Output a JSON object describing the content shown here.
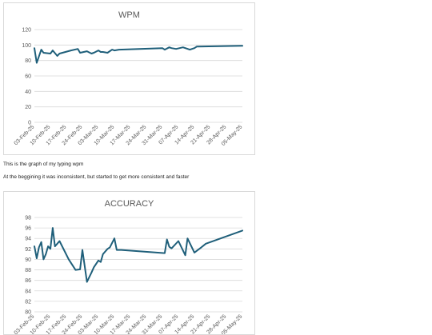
{
  "notes": {
    "line1": "This is the graph of my typing wpm",
    "line2": "At the beggining it was inconsistent, but started to get more consistent and faster"
  },
  "colors": {
    "series": "#1f5f7a",
    "grid": "#d9d9d9",
    "text": "#595959"
  },
  "chart_data": [
    {
      "type": "line",
      "title": "WPM",
      "xlabel": "",
      "ylabel": "",
      "ylim": [
        0,
        120
      ],
      "yticks": [
        0,
        20,
        40,
        60,
        80,
        100,
        120
      ],
      "xlim": [
        "2025-02-03",
        "2025-05-05"
      ],
      "xticks": [
        "03-Feb-25",
        "10-Feb-25",
        "17-Feb-25",
        "24-Feb-25",
        "03-Mar-25",
        "10-Mar-25",
        "17-Mar-25",
        "24-Mar-25",
        "31-Mar-25",
        "07-Apr-25",
        "14-Apr-25",
        "21-Apr-25",
        "28-Apr-25",
        "05-May-25"
      ],
      "grid": true,
      "legend": "none",
      "series": [
        {
          "x": [
            "2025-02-03",
            "2025-02-04",
            "2025-02-06",
            "2025-02-07",
            "2025-02-10",
            "2025-02-11",
            "2025-02-13",
            "2025-02-14",
            "2025-02-19",
            "2025-02-22",
            "2025-02-23",
            "2025-02-26",
            "2025-02-28",
            "2025-03-01",
            "2025-03-03",
            "2025-03-04",
            "2025-03-05",
            "2025-03-07",
            "2025-03-09",
            "2025-03-10",
            "2025-03-12",
            "2025-03-31",
            "2025-04-01",
            "2025-04-03",
            "2025-04-04",
            "2025-04-06",
            "2025-04-09",
            "2025-04-12",
            "2025-04-14",
            "2025-04-15",
            "2025-05-05"
          ],
          "values": [
            96,
            77,
            94,
            90,
            89,
            93,
            86,
            89,
            93,
            95,
            90,
            92,
            89,
            90,
            93,
            91,
            91,
            90,
            94,
            93,
            94,
            96,
            94,
            97,
            96,
            95,
            97,
            94,
            96,
            98,
            99
          ]
        }
      ]
    },
    {
      "type": "line",
      "title": "ACCURACY",
      "xlabel": "",
      "ylabel": "",
      "ylim": [
        80,
        98
      ],
      "yticks": [
        80,
        82,
        84,
        86,
        88,
        90,
        92,
        94,
        96,
        98
      ],
      "xlim": [
        "2025-02-03",
        "2025-05-05"
      ],
      "xticks": [
        "03-Feb-25",
        "10-Feb-25",
        "17-Feb-25",
        "24-Feb-25",
        "03-Mar-25",
        "10-Mar-25",
        "17-Mar-25",
        "24-Mar-25",
        "31-Mar-25",
        "07-Apr-25",
        "14-Apr-25",
        "21-Apr-25",
        "28-Apr-25",
        "05-May-25"
      ],
      "grid": true,
      "legend": "none",
      "series": [
        {
          "x": [
            "2025-02-03",
            "2025-02-04",
            "2025-02-05",
            "2025-02-06",
            "2025-02-07",
            "2025-02-08",
            "2025-02-09",
            "2025-02-10",
            "2025-02-11",
            "2025-02-12",
            "2025-02-13",
            "2025-02-14",
            "2025-02-18",
            "2025-02-21",
            "2025-02-23",
            "2025-02-24",
            "2025-02-26",
            "2025-02-28",
            "2025-03-01",
            "2025-03-03",
            "2025-03-04",
            "2025-03-05",
            "2025-03-07",
            "2025-03-08",
            "2025-03-10",
            "2025-03-11",
            "2025-03-13",
            "2025-04-01",
            "2025-04-02",
            "2025-04-03",
            "2025-04-04",
            "2025-04-07",
            "2025-04-10",
            "2025-04-11",
            "2025-04-14",
            "2025-04-17",
            "2025-04-19",
            "2025-05-05"
          ],
          "values": [
            92.5,
            90.2,
            92.3,
            93.3,
            90.0,
            91.0,
            92.5,
            92.0,
            96.0,
            92.5,
            93.0,
            93.5,
            90.0,
            88.0,
            88.1,
            91.8,
            85.7,
            87.5,
            88.5,
            89.8,
            89.5,
            91.0,
            92.0,
            92.3,
            94.0,
            91.8,
            91.8,
            91.2,
            93.8,
            92.4,
            92.1,
            93.5,
            90.8,
            94.0,
            91.3,
            92.3,
            93.0,
            95.5
          ]
        }
      ]
    }
  ]
}
